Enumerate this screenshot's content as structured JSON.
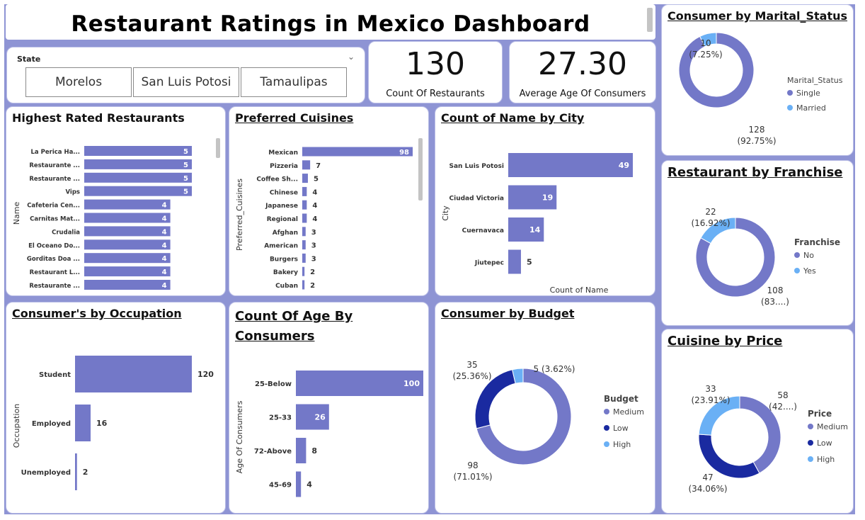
{
  "title": "Restaurant Ratings in Mexico Dashboard",
  "slicer": {
    "label": "State",
    "options": [
      "Morelos",
      "San Luis Potosi",
      "Tamaulipas"
    ]
  },
  "kpis": [
    {
      "value": "130",
      "label": "Count Of Restaurants"
    },
    {
      "value": "27.30",
      "label": "Average Age Of Consumers"
    }
  ],
  "colors": {
    "bar": "#7378c8",
    "pie_primary": "#7378c8",
    "pie_dark": "#1a2aa0",
    "pie_light": "#6ab0f5",
    "background": "#8e94d4"
  },
  "chart_data": [
    {
      "id": "highest_rated",
      "type": "bar",
      "orientation": "horizontal",
      "title": "Highest Rated Restaurants",
      "ylabel": "Name",
      "categories": [
        "La Perica Ha...",
        "Restaurante ...",
        "Restaurante ...",
        "Vips",
        "Cafeteria Cen...",
        "Carnitas Mat...",
        "Crudalia",
        "El Oceano Do...",
        "Gorditas Doa ...",
        "Restaurant L...",
        "Restaurante ..."
      ],
      "values": [
        5,
        5,
        5,
        5,
        4,
        4,
        4,
        4,
        4,
        4,
        4
      ],
      "xlim": [
        0,
        5
      ]
    },
    {
      "id": "preferred_cuisines",
      "type": "bar",
      "orientation": "horizontal",
      "title": "Preferred Cuisines",
      "ylabel": "Preferred_Cuisines",
      "categories": [
        "Mexican",
        "Pizzeria",
        "Coffee Sh...",
        "Chinese",
        "Japanese",
        "Regional",
        "Afghan",
        "American",
        "Burgers",
        "Bakery",
        "Cuban"
      ],
      "values": [
        98,
        7,
        5,
        4,
        4,
        4,
        3,
        3,
        3,
        2,
        2
      ],
      "xlim": [
        0,
        98
      ]
    },
    {
      "id": "city",
      "type": "bar",
      "orientation": "horizontal",
      "title": "Count of Name by City",
      "xlabel": "Count of Name",
      "ylabel": "City",
      "categories": [
        "San Luis Potosi",
        "Ciudad Victoria",
        "Cuernavaca",
        "Jiutepec"
      ],
      "values": [
        49,
        19,
        14,
        5
      ],
      "xlim": [
        0,
        49
      ]
    },
    {
      "id": "occupation",
      "type": "bar",
      "orientation": "horizontal",
      "title": "Consumer's by Occupation",
      "ylabel": "Occupation",
      "categories": [
        "Student",
        "Employed",
        "Unemployed"
      ],
      "values": [
        120,
        16,
        2
      ],
      "xlim": [
        0,
        120
      ]
    },
    {
      "id": "age",
      "type": "bar",
      "orientation": "horizontal",
      "title": "Count Of Age By Consumers",
      "ylabel": "Age Of Consumers",
      "categories": [
        "25-Below",
        "25-33",
        "72-Above",
        "45-69"
      ],
      "values": [
        100,
        26,
        8,
        4
      ],
      "xlim": [
        0,
        100
      ]
    },
    {
      "id": "budget",
      "type": "pie",
      "donut": true,
      "title": "Consumer by Budget",
      "legend_title": "Budget",
      "legend": "right",
      "slices": [
        {
          "label": "Medium",
          "value": 98,
          "text": "98",
          "pct": "(71.01%)"
        },
        {
          "label": "Low",
          "value": 35,
          "text": "35",
          "pct": "(25.36%)"
        },
        {
          "label": "High",
          "value": 5,
          "text": "5 (3.62%)",
          "pct": ""
        }
      ]
    },
    {
      "id": "marital",
      "type": "pie",
      "donut": true,
      "title": "Consumer by Marital_Status",
      "legend_title": "Marital_Status",
      "legend": "right",
      "slices": [
        {
          "label": "Single",
          "value": 128,
          "text": "128",
          "pct": "(92.75%)"
        },
        {
          "label": "Married",
          "value": 10,
          "text": "10",
          "pct": "(7.25%)"
        }
      ]
    },
    {
      "id": "franchise",
      "type": "pie",
      "donut": true,
      "title": "Restaurant by Franchise",
      "legend_title": "Franchise",
      "legend": "right",
      "slices": [
        {
          "label": "No",
          "value": 108,
          "text": "108",
          "pct": "(83....)"
        },
        {
          "label": "Yes",
          "value": 22,
          "text": "22",
          "pct": "(16.92%)"
        }
      ]
    },
    {
      "id": "price",
      "type": "pie",
      "donut": true,
      "title": "Cuisine by Price",
      "legend_title": "Price",
      "legend": "right",
      "slices": [
        {
          "label": "Medium",
          "value": 58,
          "text": "58",
          "pct": "(42....)"
        },
        {
          "label": "Low",
          "value": 47,
          "text": "47",
          "pct": "(34.06%)"
        },
        {
          "label": "High",
          "value": 33,
          "text": "33",
          "pct": "(23.91%)"
        }
      ]
    }
  ]
}
